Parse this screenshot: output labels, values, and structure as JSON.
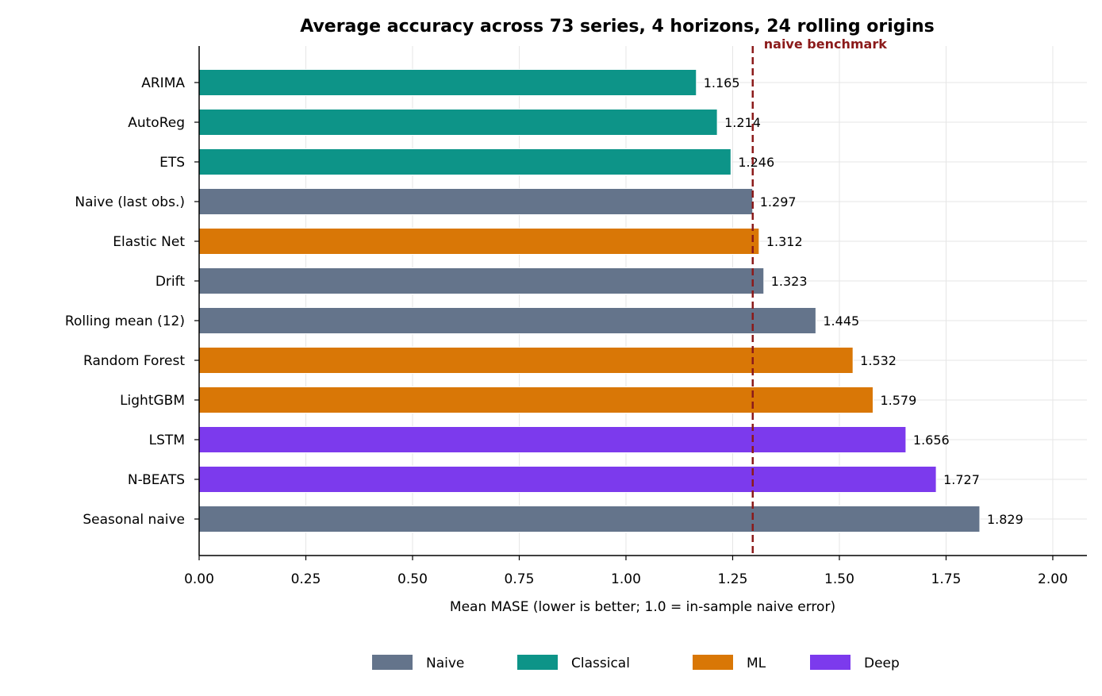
{
  "chart_data": {
    "type": "bar",
    "orientation": "horizontal",
    "title": "Average accuracy across 73 series, 4 horizons, 24 rolling origins",
    "xlabel": "Mean MASE  (lower is better; 1.0 = in-sample naive error)",
    "ylabel": "",
    "xlim": [
      0,
      2.08
    ],
    "xticks": [
      "0.00",
      "0.25",
      "0.50",
      "0.75",
      "1.00",
      "1.25",
      "1.50",
      "1.75",
      "2.00"
    ],
    "grid": true,
    "categories": [
      "ARIMA",
      "AutoReg",
      "ETS",
      "Naive (last obs.)",
      "Elastic Net",
      "Drift",
      "Rolling mean (12)",
      "Random Forest",
      "LightGBM",
      "LSTM",
      "N-BEATS",
      "Seasonal naive"
    ],
    "values": [
      1.165,
      1.214,
      1.246,
      1.297,
      1.312,
      1.323,
      1.445,
      1.532,
      1.579,
      1.656,
      1.727,
      1.829
    ],
    "value_labels": [
      "1.165",
      "1.214",
      "1.246",
      "1.297",
      "1.312",
      "1.323",
      "1.445",
      "1.532",
      "1.579",
      "1.656",
      "1.727",
      "1.829"
    ],
    "groups": [
      "Classical",
      "Classical",
      "Classical",
      "Naive",
      "ML",
      "Naive",
      "Naive",
      "ML",
      "ML",
      "Deep",
      "Deep",
      "Naive"
    ],
    "reference_line": {
      "value": 1.297,
      "label": "naive benchmark",
      "color": "#8b1a1a"
    },
    "legend": {
      "placement": "bottom-center",
      "entries": [
        {
          "name": "Naive",
          "color": "#64748b"
        },
        {
          "name": "Classical",
          "color": "#0d9488"
        },
        {
          "name": "ML",
          "color": "#d97706"
        },
        {
          "name": "Deep",
          "color": "#7c3aed"
        }
      ]
    }
  }
}
